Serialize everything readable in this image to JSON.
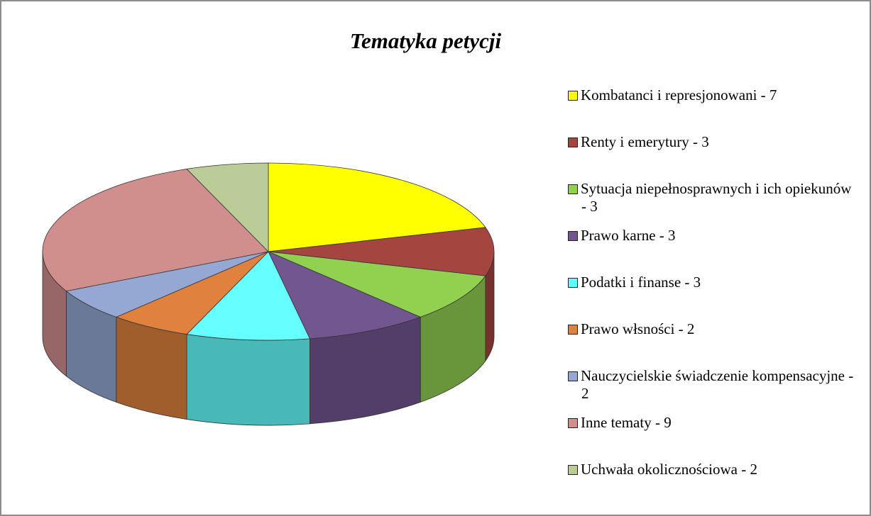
{
  "chart_data": {
    "type": "pie3d",
    "title": "Tematyka petycji",
    "categories": [
      "Kombatanci i represjonowani - 7",
      "Renty i emerytury - 3",
      "Sytuacja niepełnosprawnych i ich opiekunów - 3",
      "Prawo karne - 3",
      "Podatki i finanse - 3",
      "Prawo włsności - 2",
      "Nauczycielskie świadczenie kompensacyjne - 2",
      "Inne tematy - 9",
      "Uchwała okolicznościowa - 2"
    ],
    "values": [
      7,
      3,
      3,
      3,
      3,
      2,
      2,
      9,
      2
    ],
    "colors": [
      "#ffff00",
      "#a5453f",
      "#92d050",
      "#725690",
      "#66ffff",
      "#e0823e",
      "#95a8d3",
      "#d08f8d",
      "#bccc98"
    ],
    "legend": "right"
  }
}
